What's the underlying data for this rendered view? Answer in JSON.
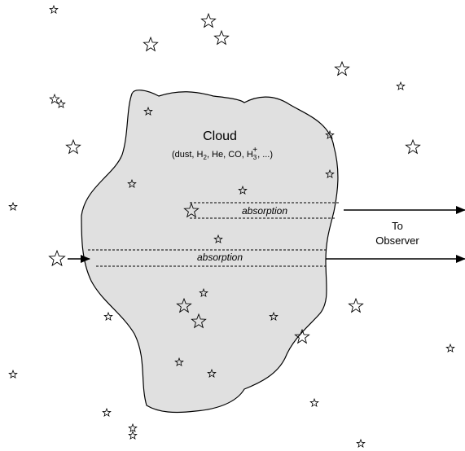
{
  "cloud": {
    "title": "Cloud",
    "composition_open": "(dust, H",
    "sub_2a": "2",
    "composition_mid": ", He, CO, H",
    "sub_3": "3",
    "sup_plus": "+",
    "composition_close": ", ...)",
    "fill_color": "#e0e0e0"
  },
  "paths": [
    {
      "label": "absorption"
    },
    {
      "label": "absorption"
    }
  ],
  "observer": {
    "line1": "To",
    "line2": "Observer"
  },
  "icons": {
    "star": "star-outline-icon",
    "arrow": "arrow-right-icon"
  }
}
